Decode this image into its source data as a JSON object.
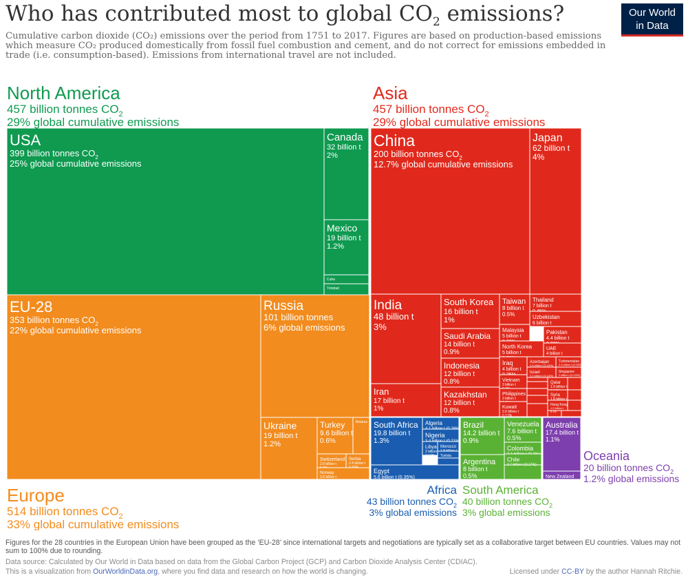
{
  "title_text": "Who has contributed most to global CO",
  "title_sub": "2",
  "title_tail": " emissions?",
  "subtitle": "Cumulative carbon dioxide (CO₂) emissions over the period from 1751 to 2017. Figures are based on production-based emissions which measure CO₂ produced domestically from fossil fuel combustion and cement, and do not correct for emissions embedded in trade (i.e. consumption-based). Emissions from international travel are not included.",
  "logo": {
    "line1": "Our World",
    "line2": "in Data"
  },
  "notes": "Figures for the 28 countries in the European Union have been grouped as the ‘EU-28’ since international targets and negotiations are typically set as a collaborative target between EU countries. Values may not sum to 100% due to rounding.",
  "source": "Data source: Calculated by Our World in Data based on data from the Global Carbon Project (GCP) and Carbon Dioxide Analysis Center (CDIAC).",
  "credit": {
    "before": "This is a visualization from ",
    "link": "OurWorldinData.org",
    "after": ", where you find data and research on how the world is changing."
  },
  "license": {
    "before": "Licensed under ",
    "link": "CC-BY",
    "after": " by the author Hannah Ritchie."
  },
  "colors": {
    "North America": "#0f9a50",
    "Asia": "#e0291c",
    "Europe": "#f28c1e",
    "Africa": "#1a5db0",
    "South America": "#5ab235",
    "Oceania": "#7e3fae"
  },
  "chart_data": {
    "type": "treemap",
    "unit": "billion tonnes CO2 (cumulative 1751-2017)",
    "regions": [
      {
        "name": "North America",
        "value": 457,
        "label_lines": [
          "North America",
          "457 billion tonnes CO2",
          "29% global cumulative emissions"
        ],
        "countries": [
          {
            "name": "USA",
            "value": 399,
            "lines": [
              "USA",
              "399 billion tonnes CO2",
              "25% global cumulative emissions"
            ]
          },
          {
            "name": "Canada",
            "value": 32,
            "lines": [
              "Canada",
              "32 billion t",
              "2%"
            ]
          },
          {
            "name": "Mexico",
            "value": 19,
            "lines": [
              "Mexico",
              "19 billion t",
              "1.2%"
            ]
          },
          {
            "name": "Cuba",
            "value": 1.6,
            "lines": [
              "Cuba"
            ]
          },
          {
            "name": "Trinidad",
            "value": 1,
            "lines": [
              "Trinidad"
            ]
          }
        ]
      },
      {
        "name": "Asia",
        "value": 457,
        "label_lines": [
          "Asia",
          "457 billion tonnes CO2",
          "29% global cumulative emissions"
        ],
        "countries": [
          {
            "name": "China",
            "value": 200,
            "lines": [
              "China",
              "200 billion tonnes CO2",
              "12.7% global cumulative emissions"
            ]
          },
          {
            "name": "Japan",
            "value": 62,
            "lines": [
              "Japan",
              "62 billion t",
              "4%"
            ]
          },
          {
            "name": "India",
            "value": 48,
            "lines": [
              "India",
              "48 billion t",
              "3%"
            ]
          },
          {
            "name": "Iran",
            "value": 17,
            "lines": [
              "Iran",
              "17 billion t",
              "1%"
            ]
          },
          {
            "name": "South Korea",
            "value": 16,
            "lines": [
              "South Korea",
              "16 billion t",
              "1%"
            ]
          },
          {
            "name": "Saudi Arabia",
            "value": 14,
            "lines": [
              "Saudi Arabia",
              "14 billion t",
              "0.9%"
            ]
          },
          {
            "name": "Indonesia",
            "value": 12,
            "lines": [
              "Indonesia",
              "12 billion t",
              "0.8%"
            ]
          },
          {
            "name": "Kazakhstan",
            "value": 12,
            "lines": [
              "Kazakhstan",
              "12 billion t",
              "0.8%"
            ]
          },
          {
            "name": "Taiwan",
            "value": 8,
            "lines": [
              "Taiwan",
              "8 billion t",
              "0.5%"
            ]
          },
          {
            "name": "Thailand",
            "value": 7,
            "lines": [
              "Thailand",
              "7 billion t",
              "0.45%"
            ]
          },
          {
            "name": "Uzbekistan",
            "value": 6,
            "lines": [
              "Uzbekistan",
              "6 billion t",
              "0.4%"
            ]
          },
          {
            "name": "Malaysia",
            "value": 5,
            "lines": [
              "Malaysia",
              "5 billion t",
              "0.33%"
            ]
          },
          {
            "name": "Pakistan",
            "value": 4.4,
            "lines": [
              "Pakistan",
              "4.4 billion t",
              "0.28%"
            ]
          },
          {
            "name": "North Korea",
            "value": 5,
            "lines": [
              "North Korea",
              "5 billion t",
              "0.32%"
            ]
          },
          {
            "name": "UAE",
            "value": 4,
            "lines": [
              "UAE",
              "4 billion t",
              "0.26%"
            ]
          },
          {
            "name": "Iraq",
            "value": 4,
            "lines": [
              "Iraq",
              "4 billion t",
              "0.25%"
            ]
          },
          {
            "name": "Azerbaijan",
            "value": 2.5,
            "lines": [
              "Azerbaijan",
              "2.5 billion t (0.16%)"
            ]
          },
          {
            "name": "Turkmenistan",
            "value": 2.4,
            "lines": [
              "Turkmenistan",
              "2.4 billion t (0.15%)"
            ]
          },
          {
            "name": "Israel",
            "value": 2.2,
            "lines": [
              "Israel",
              "2.2 billion t (0.14%)"
            ]
          },
          {
            "name": "Singapore",
            "value": 2,
            "lines": [
              "Singapore",
              "2 billion t (0.13%)"
            ]
          },
          {
            "name": "Vietnam",
            "value": 3,
            "lines": [
              "Vietnam",
              "3 billion t",
              "0.2%"
            ]
          },
          {
            "name": "Qatar",
            "value": 1.9,
            "lines": [
              "Qatar",
              "1.9 billion t",
              "0.12%"
            ]
          },
          {
            "name": "Philippines",
            "value": 3,
            "lines": [
              "Philippines",
              "3 billion t",
              "0.2%"
            ]
          },
          {
            "name": "Syria",
            "value": 1.8,
            "lines": [
              "Syria",
              "1.8 billion t",
              "0.11%"
            ]
          },
          {
            "name": "Kuwait",
            "value": 2.6,
            "lines": [
              "Kuwait",
              "2.6 billion t",
              "0.17%"
            ]
          },
          {
            "name": "Hong Kong",
            "value": 1.5,
            "lines": [
              "Hong Kong",
              "1.5 billion t",
              "0.1%"
            ]
          }
        ]
      },
      {
        "name": "Europe",
        "value": 514,
        "label_lines": [
          "Europe",
          "514 billion tonnes CO2",
          "33% global cumulative emissions"
        ],
        "countries": [
          {
            "name": "EU-28",
            "value": 353,
            "lines": [
              "EU-28",
              "353 billion tonnes CO2",
              "22% global cumulative emissions"
            ]
          },
          {
            "name": "Russia",
            "value": 101,
            "lines": [
              "Russia",
              "101 billion tonnes",
              "6% global emissions"
            ]
          },
          {
            "name": "Ukraine",
            "value": 19,
            "lines": [
              "Ukraine",
              "19 billion t",
              "1.2%"
            ]
          },
          {
            "name": "Turkey",
            "value": 9.6,
            "lines": [
              "Turkey",
              "9.6 billion t",
              "0.6%"
            ]
          },
          {
            "name": "Belarus",
            "value": 3.2,
            "lines": [
              "Belarus"
            ]
          },
          {
            "name": "Switzerland",
            "value": 2.8,
            "lines": [
              "Switzerland",
              "2.8 billion t",
              "0.2%"
            ]
          },
          {
            "name": "Serbia",
            "value": 2.4,
            "lines": [
              "Serbia",
              "2.4 billion t",
              "0.15%"
            ]
          },
          {
            "name": "Norway",
            "value": 2.6,
            "lines": [
              "Norway",
              "2.6 billion t",
              "0.16%"
            ]
          }
        ]
      },
      {
        "name": "Africa",
        "value": 43,
        "label_lines": [
          "Africa",
          "43 billion tonnes CO2",
          "3% global emissions"
        ],
        "countries": [
          {
            "name": "South Africa",
            "value": 19.8,
            "lines": [
              "South Africa",
              "19.8 billion t",
              "1.3%"
            ]
          },
          {
            "name": "Algeria",
            "value": 4.1,
            "lines": [
              "Algeria",
              "4.1 billion t (0.26%)"
            ]
          },
          {
            "name": "Nigeria",
            "value": 3.4,
            "lines": [
              "Nigeria",
              "3.4 billion t (0.21%)"
            ]
          },
          {
            "name": "Libya",
            "value": 2,
            "lines": [
              "Libya",
              "2 billion t",
              "0.12%"
            ]
          },
          {
            "name": "Morocco",
            "value": 1.8,
            "lines": [
              "Morocco",
              "1.8 billion t",
              "0.11%"
            ]
          },
          {
            "name": "Tunisia",
            "value": 0.8,
            "lines": [
              "Tunisia"
            ]
          },
          {
            "name": "Egypt",
            "value": 5.6,
            "lines": [
              "Egypt",
              "5.6 billion t (0.35%)"
            ]
          }
        ]
      },
      {
        "name": "South America",
        "value": 40,
        "label_lines": [
          "South America",
          "40 billion tonnes CO2",
          "3% global emissions"
        ],
        "countries": [
          {
            "name": "Brazil",
            "value": 14.2,
            "lines": [
              "Brazil",
              "14.2 billion t",
              "0.9%"
            ]
          },
          {
            "name": "Venezuela",
            "value": 7.6,
            "lines": [
              "Venezuela",
              "7.6 billion t",
              "0.5%"
            ]
          },
          {
            "name": "Colombia",
            "value": 3.1,
            "lines": [
              "Colombia",
              "3.1 billion t (0.2%)"
            ]
          },
          {
            "name": "Chile",
            "value": 2.7,
            "lines": [
              "Chile",
              "2.7 billion t (0.17%)"
            ]
          },
          {
            "name": "Argentina",
            "value": 8,
            "lines": [
              "Argentina",
              "8 billion t",
              "0.5%"
            ]
          }
        ]
      },
      {
        "name": "Oceania",
        "value": 20,
        "label_lines": [
          "Oceania",
          "20 billion tonnes CO2",
          "1.2% global emissions"
        ],
        "countries": [
          {
            "name": "Australia",
            "value": 17.4,
            "lines": [
              "Australia",
              "17.4 billion t",
              "1.1%"
            ]
          },
          {
            "name": "New Zealand",
            "value": 1.7,
            "lines": [
              "New Zealand",
              "1.7 billion t (0.11%)"
            ]
          }
        ]
      }
    ]
  }
}
